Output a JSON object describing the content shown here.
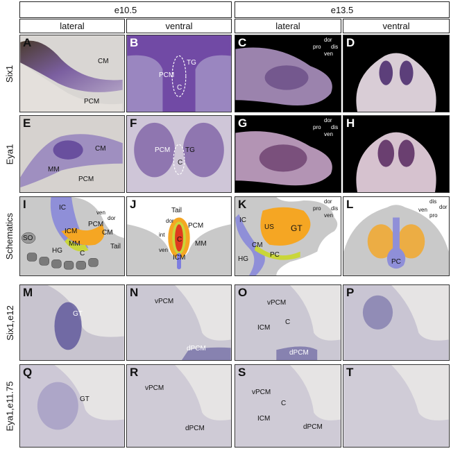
{
  "header": {
    "stage1": "e10.5",
    "stage2": "e13.5",
    "view_lateral": "lateral",
    "view_ventral": "ventral"
  },
  "rows": {
    "r1": "Six1",
    "r2": "Eya1",
    "r3": "Schematics",
    "r4": "Six1,e12",
    "r5": "Eya1,e11.75"
  },
  "panels": {
    "A": {
      "letter": "A",
      "labels": [
        "CM",
        "PCM"
      ]
    },
    "B": {
      "letter": "B",
      "labels": [
        "TG",
        "PCM",
        "C"
      ]
    },
    "C": {
      "letter": "C",
      "labels": [
        "dor",
        "pro",
        "dis",
        "ven"
      ]
    },
    "D": {
      "letter": "D"
    },
    "E": {
      "letter": "E",
      "labels": [
        "CM",
        "MM",
        "PCM"
      ]
    },
    "F": {
      "letter": "F",
      "labels": [
        "TG",
        "PCM",
        "C"
      ]
    },
    "G": {
      "letter": "G",
      "labels": [
        "dor",
        "pro",
        "dis",
        "ven"
      ]
    },
    "H": {
      "letter": "H"
    },
    "I": {
      "letter": "I",
      "labels": [
        "IC",
        "ven",
        "dor",
        "SO",
        "ICM",
        "PCM",
        "CM",
        "MM",
        "HG",
        "C",
        "Tail"
      ]
    },
    "J": {
      "letter": "J",
      "labels": [
        "Tail",
        "dor",
        "PCM",
        "int",
        "C",
        "MM",
        "ven",
        "ICM"
      ]
    },
    "K": {
      "letter": "K",
      "labels": [
        "dor",
        "pro",
        "dis",
        "ven",
        "IC",
        "US",
        "GT",
        "CM",
        "HG",
        "PC"
      ]
    },
    "L": {
      "letter": "L",
      "labels": [
        "dis",
        "dor",
        "ven",
        "pro",
        "PC"
      ]
    },
    "M": {
      "letter": "M",
      "labels": [
        "GT"
      ]
    },
    "N": {
      "letter": "N",
      "labels": [
        "vPCM",
        "dPCM"
      ]
    },
    "O": {
      "letter": "O",
      "labels": [
        "vPCM",
        "ICM",
        "C",
        "dPCM"
      ]
    },
    "P": {
      "letter": "P"
    },
    "Q": {
      "letter": "Q",
      "labels": [
        "GT"
      ]
    },
    "R": {
      "letter": "R",
      "labels": [
        "vPCM",
        "dPCM"
      ]
    },
    "S": {
      "letter": "S",
      "labels": [
        "vPCM",
        "C",
        "ICM",
        "dPCM"
      ]
    },
    "T": {
      "letter": "T"
    }
  }
}
